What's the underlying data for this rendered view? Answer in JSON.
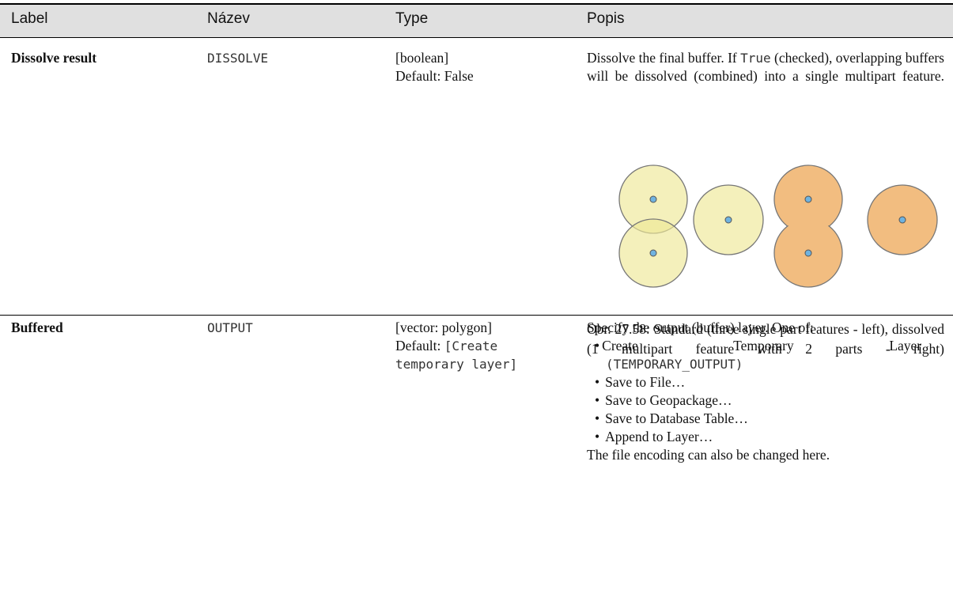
{
  "header": [
    "Label",
    "Název",
    "Type",
    "Popis"
  ],
  "rows": [
    {
      "label": "Dissolve result",
      "name": "DISSOLVE",
      "type": "[boolean]",
      "default": "Default: False",
      "description": [
        "Dissolve the final buffer. If ",
        "True",
        " (checked), overlapping buffers will be dissolved (combined) into a single multipart feature."
      ],
      "caption": "Obr. 27.58: Standard (three single part features - left), dissolved (1 multipart feature with 2 parts - right)"
    },
    {
      "label": "Buffered",
      "name": "OUTPUT",
      "type": "[vector: polygon]",
      "default": [
        "Default: ",
        "[Create temporary layer]"
      ],
      "description": "Specify the output (buffer) layer. One of:",
      "options": [
        [
          "Create Temporary Layer ",
          "(TEMPORARY_OUTPUT)"
        ],
        "Save to File…",
        "Save to Geopackage…",
        "Save to Database Table…",
        "Append to Layer…"
      ],
      "note": "The file encoding can also be changed here."
    }
  ]
}
